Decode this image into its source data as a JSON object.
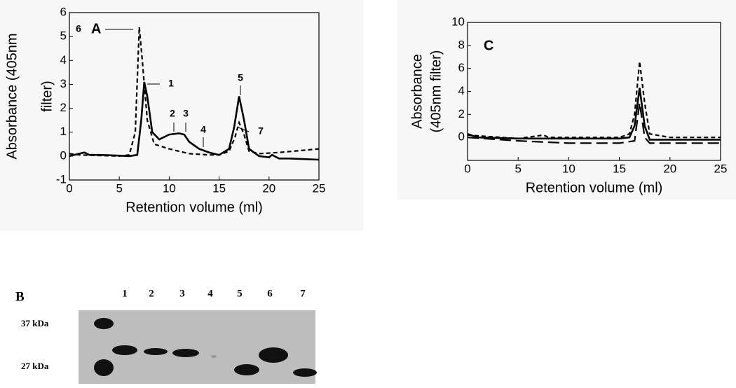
{
  "chart_data": [
    {
      "type": "line",
      "panel_label": "A",
      "xlabel": "Retention volume (ml)",
      "ylabel": [
        "Absorbance (405nm",
        "filter)"
      ],
      "xlim": [
        0,
        25
      ],
      "ylim": [
        -1,
        6
      ],
      "xticks": [
        0,
        5,
        10,
        15,
        20,
        25
      ],
      "yticks": [
        -1,
        0,
        1,
        2,
        3,
        4,
        5,
        6
      ],
      "annotations": [
        "6",
        "1",
        "2",
        "3",
        "4",
        "5",
        "7"
      ],
      "series": [
        {
          "color": "#000000",
          "style": "solid",
          "x": [
            0,
            1,
            1.5,
            2,
            3,
            5,
            6,
            6.8,
            7.2,
            7.5,
            7.8,
            8.3,
            9,
            10,
            11,
            11.5,
            12,
            13,
            14,
            15,
            16,
            16.5,
            17,
            17.5,
            18,
            19,
            20,
            20.3,
            21,
            22,
            25
          ],
          "values": [
            0,
            0.1,
            0.15,
            0.05,
            0.05,
            0.02,
            0,
            0.05,
            1.5,
            3.1,
            2.5,
            1,
            0.7,
            0.9,
            0.95,
            0.9,
            0.6,
            0.3,
            0.15,
            0.05,
            0.3,
            1.2,
            2.5,
            1.5,
            0.3,
            0,
            -0.05,
            0.05,
            -0.1,
            -0.1,
            -0.15
          ]
        },
        {
          "color": "#000000",
          "style": "dashed",
          "x": [
            0,
            1,
            5,
            6,
            6.6,
            7,
            7.3,
            7.8,
            8.5,
            10,
            11,
            12,
            14,
            15,
            16,
            16.6,
            17,
            17.5,
            18,
            19,
            21,
            25
          ],
          "values": [
            0.1,
            0.05,
            0,
            0.05,
            1,
            5.4,
            4,
            1.5,
            0.5,
            0.3,
            0.2,
            0.1,
            0.05,
            0.05,
            0.2,
            0.8,
            1.4,
            0.9,
            0.2,
            0.1,
            0.15,
            0.3
          ]
        }
      ]
    },
    {
      "type": "line",
      "panel_label": "C",
      "xlabel": "Retention volume (ml)",
      "ylabel": [
        "Absorbance",
        "(405nm filter)"
      ],
      "xlim": [
        0,
        25
      ],
      "ylim": [
        -2,
        10
      ],
      "xticks": [
        0,
        5,
        10,
        15,
        20,
        25
      ],
      "yticks": [
        0,
        2,
        4,
        6,
        8,
        10
      ],
      "annotations": [],
      "series": [
        {
          "color": "#000000",
          "style": "solid",
          "x": [
            0,
            1,
            5,
            10,
            15,
            16,
            16.5,
            17,
            17.5,
            18,
            20,
            25
          ],
          "values": [
            0.3,
            0,
            -0.1,
            -0.1,
            -0.1,
            0,
            1,
            4.3,
            1,
            -0.2,
            -0.2,
            -0.2
          ]
        },
        {
          "color": "#000000",
          "style": "dashed",
          "x": [
            0,
            5,
            7.5,
            8,
            15,
            16,
            16.5,
            17,
            17.5,
            18,
            20,
            25
          ],
          "values": [
            0.2,
            -0.1,
            0.2,
            0,
            0,
            0.3,
            2,
            6.6,
            3,
            0.3,
            0,
            0
          ]
        },
        {
          "color": "#000000",
          "style": "long-dash",
          "x": [
            0,
            5,
            10,
            15,
            16.5,
            17,
            17.5,
            18,
            25
          ],
          "values": [
            0,
            -0.3,
            -0.5,
            -0.5,
            -0.3,
            3,
            0,
            -0.5,
            -0.5
          ]
        }
      ]
    }
  ],
  "gel": {
    "panel_label": "B",
    "lanes": [
      "1",
      "2",
      "3",
      "4",
      "5",
      "6",
      "7"
    ],
    "markers": [
      "37 kDa",
      "27 kDa"
    ]
  }
}
